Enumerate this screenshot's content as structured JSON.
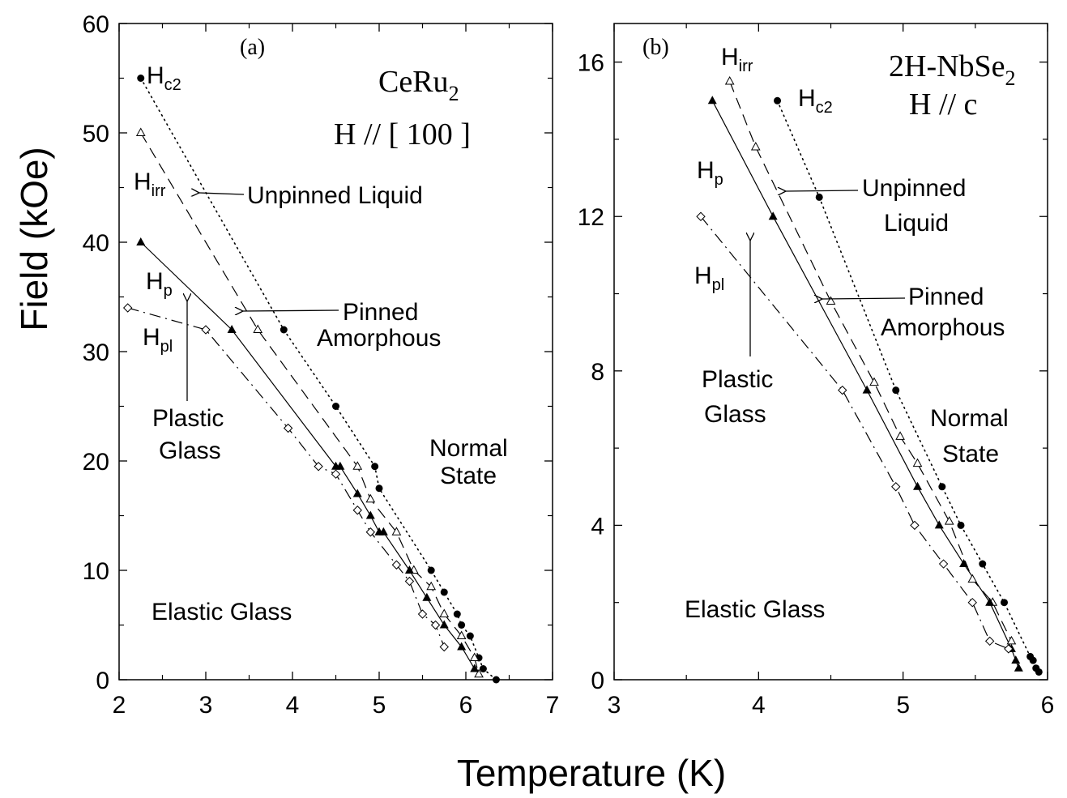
{
  "figure": {
    "xlabel": "Temperature (K)",
    "ylabel": "Field (kOe)"
  },
  "chart_data": [
    {
      "type": "scatter",
      "panel_label": "(a)",
      "material": {
        "base": "CeRu",
        "sub": "2"
      },
      "orientation": "H // [ 100 ]",
      "xlim": [
        2,
        7
      ],
      "ylim": [
        0,
        60
      ],
      "x_ticks": [
        2,
        3,
        4,
        5,
        6,
        7
      ],
      "y_ticks": [
        0,
        10,
        20,
        30,
        40,
        50,
        60
      ],
      "x_tick_labels": [
        "2",
        "3",
        "4",
        "5",
        "6",
        "7"
      ],
      "y_tick_labels": [
        "0",
        "10",
        "20",
        "30",
        "40",
        "50",
        "60"
      ],
      "series": [
        {
          "name": "Hc2",
          "label_base": "H",
          "label_sub": "c2",
          "marker": "filled-circle",
          "line": "dotted",
          "x": [
            2.25,
            3.9,
            4.5,
            4.95,
            5.0,
            5.6,
            5.75,
            5.9,
            5.95,
            6.05,
            6.15,
            6.2,
            6.35
          ],
          "y": [
            55,
            32,
            25,
            19.5,
            17.5,
            10,
            8,
            6,
            5,
            4,
            2,
            1,
            0
          ]
        },
        {
          "name": "Hirr",
          "label_base": "H",
          "label_sub": "irr",
          "marker": "open-triangle",
          "line": "dashed",
          "x": [
            2.25,
            3.6,
            4.75,
            4.9,
            5.2,
            5.4,
            5.6,
            5.75,
            5.95,
            6.1,
            6.15
          ],
          "y": [
            50,
            32,
            19.5,
            16.5,
            13.5,
            10,
            8.5,
            6,
            4,
            2,
            0.5
          ]
        },
        {
          "name": "Hp",
          "label_base": "H",
          "label_sub": "p",
          "marker": "filled-triangle",
          "line": "solid",
          "x": [
            2.25,
            3.3,
            4.5,
            4.55,
            4.75,
            4.9,
            5.0,
            5.05,
            5.35,
            5.55,
            5.75,
            5.95,
            6.1
          ],
          "y": [
            40,
            32,
            19.5,
            19.5,
            17,
            15,
            13.5,
            13.5,
            10,
            7.5,
            5,
            3,
            1
          ]
        },
        {
          "name": "Hpl",
          "label_base": "H",
          "label_sub": "pl",
          "marker": "open-diamond",
          "line": "dashdot",
          "x": [
            2.1,
            3.0,
            3.95,
            4.3,
            4.5,
            4.75,
            4.9,
            5.2,
            5.35,
            5.5,
            5.65,
            5.75
          ],
          "y": [
            34,
            32,
            23,
            19.5,
            18.8,
            15.5,
            13.5,
            10.5,
            9,
            6,
            5,
            3
          ]
        }
      ],
      "annotations": [
        {
          "text": "Unpinned Liquid"
        },
        {
          "text": "Pinned"
        },
        {
          "text": "Amorphous"
        },
        {
          "text": "Plastic"
        },
        {
          "text": "Glass"
        },
        {
          "text": "Normal"
        },
        {
          "text": "State"
        },
        {
          "text": "Elastic Glass"
        }
      ]
    },
    {
      "type": "scatter",
      "panel_label": "(b)",
      "material": {
        "base": "2H-NbSe",
        "sub": "2"
      },
      "orientation": "H // c",
      "xlim": [
        3,
        6
      ],
      "ylim": [
        0,
        17
      ],
      "x_ticks": [
        3,
        4,
        5,
        6
      ],
      "y_ticks": [
        0,
        4,
        8,
        12,
        16
      ],
      "x_tick_labels": [
        "3",
        "4",
        "5",
        "6"
      ],
      "y_tick_labels": [
        "0",
        "4",
        "8",
        "12",
        "16"
      ],
      "series": [
        {
          "name": "Hc2",
          "label_base": "H",
          "label_sub": "c2",
          "marker": "filled-circle",
          "line": "dotted",
          "x": [
            4.13,
            4.42,
            4.95,
            5.27,
            5.4,
            5.55,
            5.7,
            5.88,
            5.9,
            5.92,
            5.94
          ],
          "y": [
            15,
            12.5,
            7.5,
            5,
            4,
            3,
            2,
            0.6,
            0.5,
            0.3,
            0.2
          ]
        },
        {
          "name": "Hirr",
          "label_base": "H",
          "label_sub": "irr",
          "marker": "open-triangle",
          "line": "dashed",
          "x": [
            3.8,
            3.98,
            4.5,
            4.8,
            4.98,
            5.1,
            5.32,
            5.48,
            5.62,
            5.75
          ],
          "y": [
            15.5,
            13.8,
            9.8,
            7.7,
            6.3,
            5.6,
            4.1,
            2.6,
            2,
            1
          ]
        },
        {
          "name": "Hp",
          "label_base": "H",
          "label_sub": "p",
          "marker": "filled-triangle",
          "line": "solid",
          "x": [
            3.68,
            4.1,
            4.75,
            5.1,
            5.25,
            5.42,
            5.6,
            5.75,
            5.78,
            5.8
          ],
          "y": [
            15,
            12,
            7.5,
            5,
            4,
            3,
            2,
            0.8,
            0.5,
            0.3
          ]
        },
        {
          "name": "Hpl",
          "label_base": "H",
          "label_sub": "pl",
          "marker": "open-diamond",
          "line": "dashdot",
          "x": [
            3.6,
            4.58,
            4.95,
            5.08,
            5.28,
            5.48,
            5.6,
            5.73
          ],
          "y": [
            12,
            7.5,
            5,
            4,
            3,
            2,
            1,
            0.8
          ]
        }
      ],
      "annotations": [
        {
          "text": "Unpinned"
        },
        {
          "text": "Liquid"
        },
        {
          "text": "Pinned"
        },
        {
          "text": "Amorphous"
        },
        {
          "text": "Plastic"
        },
        {
          "text": "Glass"
        },
        {
          "text": "Normal"
        },
        {
          "text": "State"
        },
        {
          "text": "Elastic Glass"
        }
      ]
    }
  ]
}
